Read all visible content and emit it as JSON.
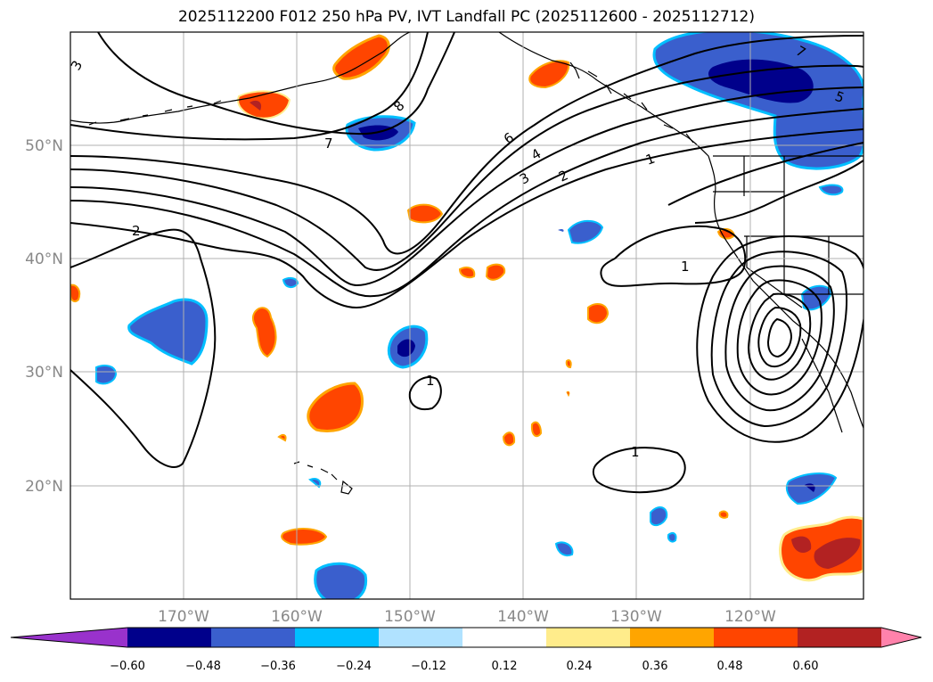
{
  "title": "2025112200 F012 250 hPa PV, IVT Landfall PC (2025112600 - 2025112712)",
  "lat_labels": [
    "50°N",
    "40°N",
    "30°N",
    "20°N"
  ],
  "lon_labels": [
    "170°W",
    "160°W",
    "150°W",
    "140°W",
    "130°W",
    "120°W"
  ],
  "contour_labels": [
    "3",
    "8",
    "7",
    "6",
    "4",
    "3",
    "2",
    "1",
    "2",
    "1",
    "1",
    "1",
    "7",
    "5"
  ],
  "colorbar": {
    "tick_labels": [
      "−0.60",
      "−0.48",
      "−0.36",
      "−0.24",
      "−0.12",
      "0.12",
      "0.24",
      "0.36",
      "0.48",
      "0.60"
    ],
    "colors": [
      "#9932cc",
      "#00008b",
      "#3a5fcd",
      "#00bfff",
      "#b0e2ff",
      "#ffffff",
      "#ffec8b",
      "#ffa500",
      "#ff4500",
      "#b22222",
      "#ff82ab"
    ]
  }
}
